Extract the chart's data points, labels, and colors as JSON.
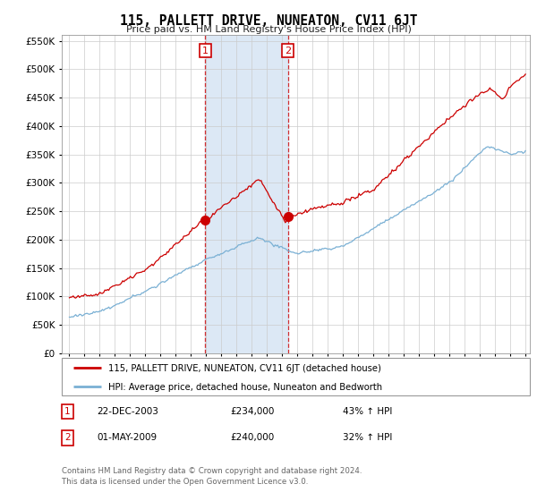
{
  "title": "115, PALLETT DRIVE, NUNEATON, CV11 6JT",
  "subtitle": "Price paid vs. HM Land Registry's House Price Index (HPI)",
  "legend_line1": "115, PALLETT DRIVE, NUNEATON, CV11 6JT (detached house)",
  "legend_line2": "HPI: Average price, detached house, Nuneaton and Bedworth",
  "footnote": "Contains HM Land Registry data © Crown copyright and database right 2024.\nThis data is licensed under the Open Government Licence v3.0.",
  "point1_date": "22-DEC-2003",
  "point1_price": "£234,000",
  "point1_hpi": "43% ↑ HPI",
  "point2_date": "01-MAY-2009",
  "point2_price": "£240,000",
  "point2_hpi": "32% ↑ HPI",
  "red_color": "#cc0000",
  "blue_color": "#7ab0d4",
  "shaded_color": "#dce8f5",
  "ylim_min": 0,
  "ylim_max": 560000,
  "yticks": [
    0,
    50000,
    100000,
    150000,
    200000,
    250000,
    300000,
    350000,
    400000,
    450000,
    500000,
    550000
  ],
  "point1_x_year": 2003.97,
  "point1_y": 234000,
  "point2_x_year": 2009.37,
  "point2_y": 240000,
  "xmin": 1994.5,
  "xmax": 2025.3
}
